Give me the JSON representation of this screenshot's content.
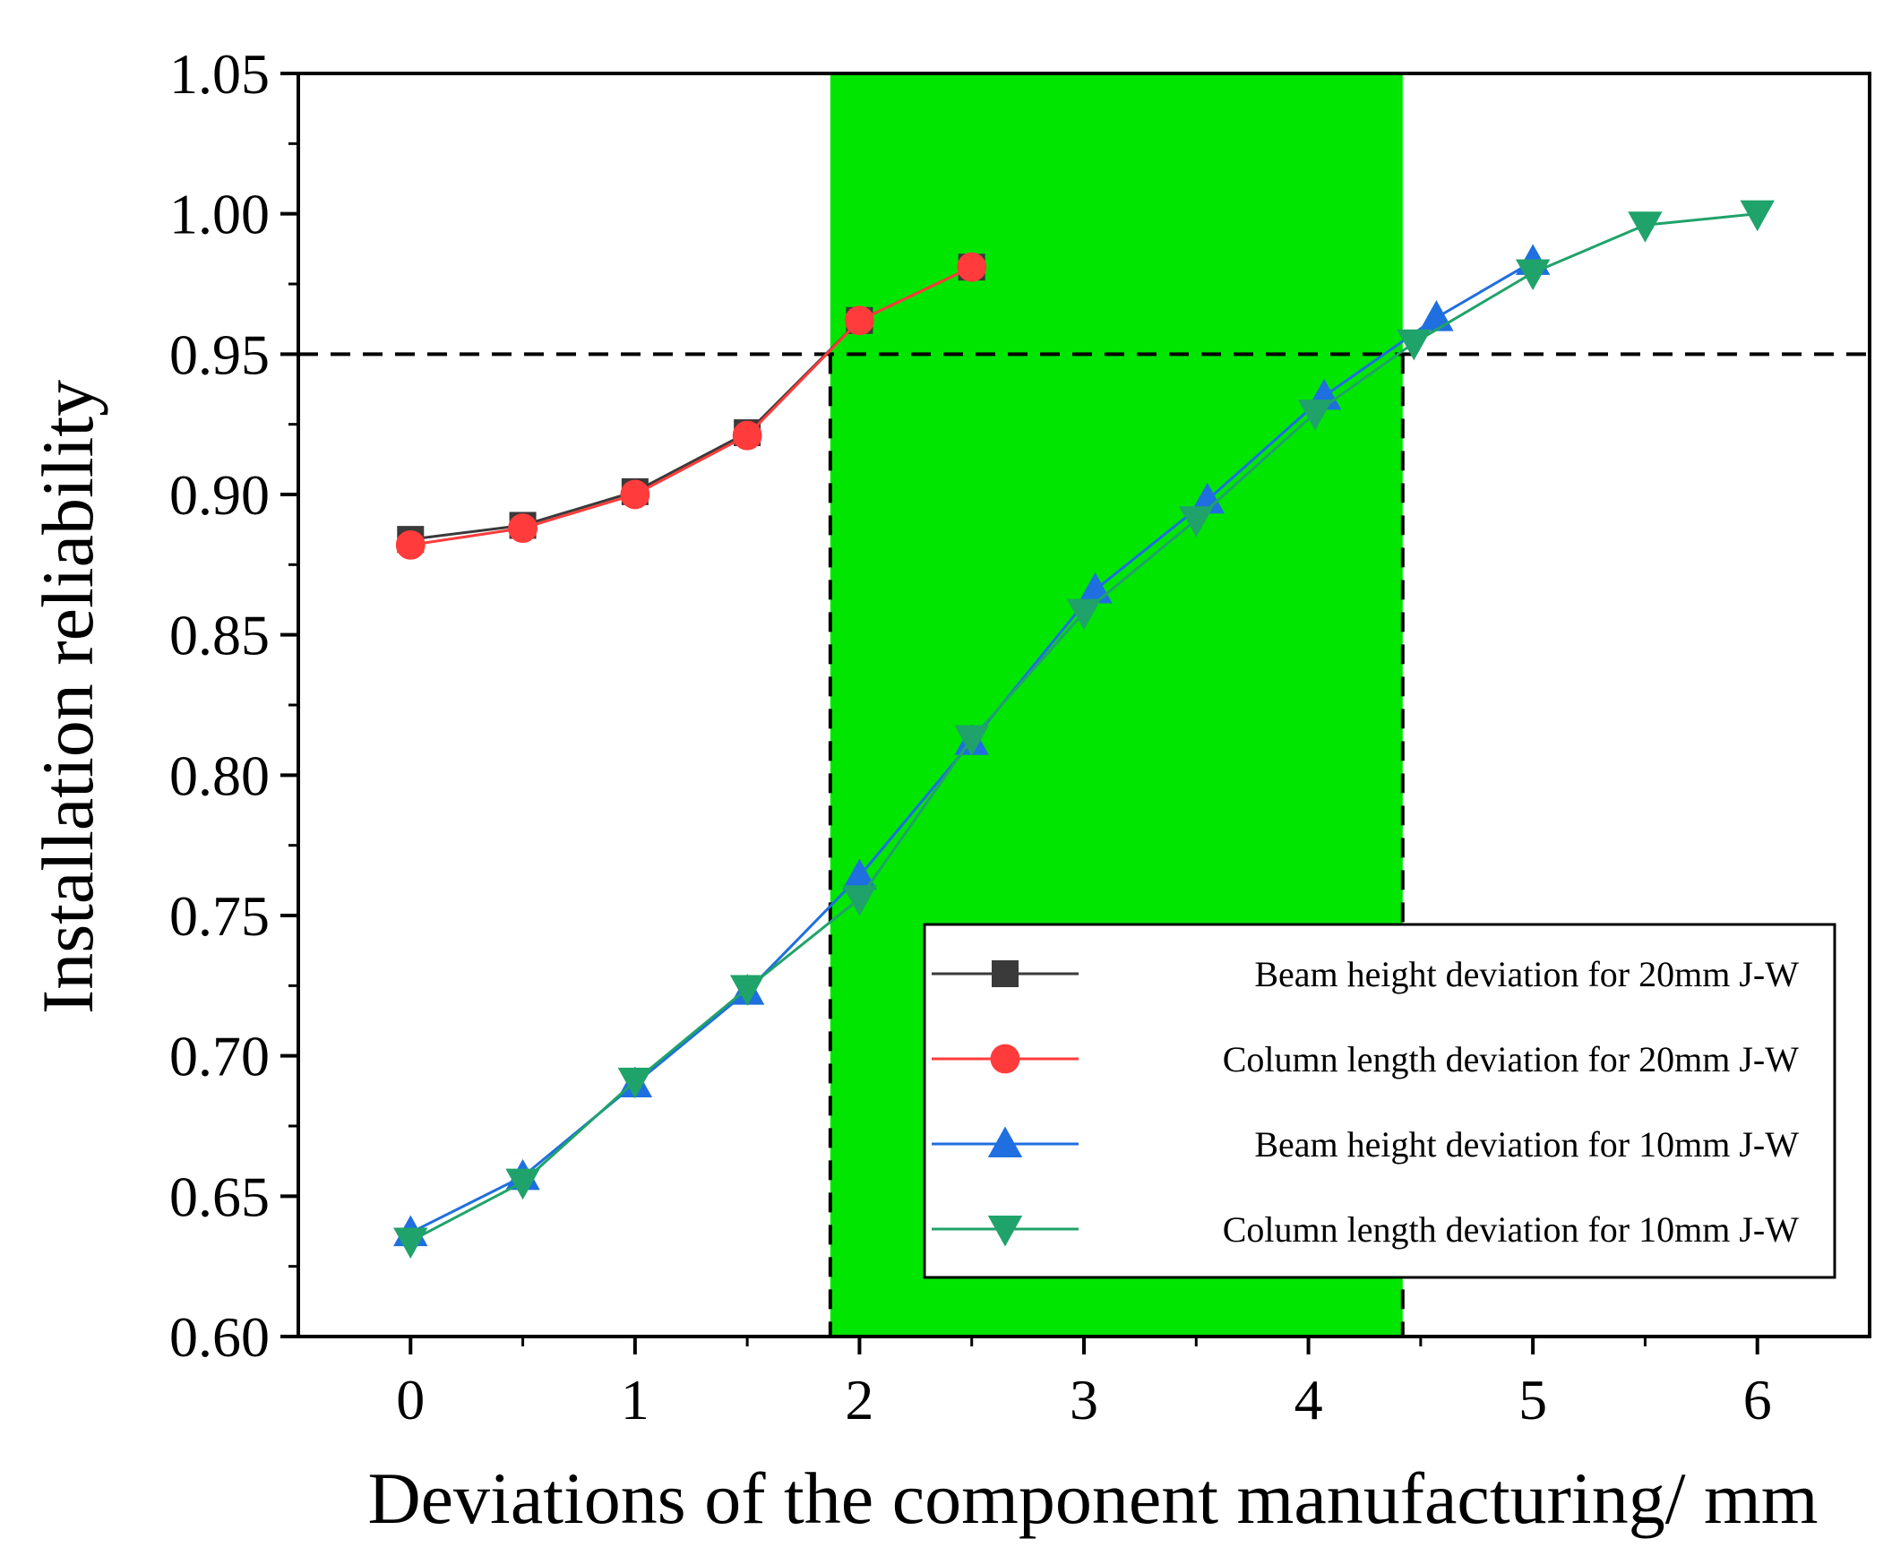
{
  "chart_data": {
    "type": "line",
    "xlabel": "Deviations of the component manufacturing/ mm",
    "ylabel": "Installation reliability",
    "xlim": [
      -0.5,
      6.5
    ],
    "ylim": [
      0.6,
      1.05
    ],
    "xticks": [
      0,
      1,
      2,
      3,
      4,
      5,
      6
    ],
    "yticks": [
      0.6,
      0.65,
      0.7,
      0.75,
      0.8,
      0.85,
      0.9,
      0.95,
      1.0,
      1.05
    ],
    "ytick_labels": [
      "0.60",
      "0.65",
      "0.70",
      "0.75",
      "0.80",
      "0.85",
      "0.90",
      "0.95",
      "1.00",
      "1.05"
    ],
    "highlight_band": {
      "x_from": 1.87,
      "x_to": 4.42,
      "color": "#00e600"
    },
    "threshold": {
      "y": 0.95,
      "style": "dashed",
      "drop_lines_at_x": [
        1.87,
        4.42
      ]
    },
    "legend_position": "lower-right",
    "series": [
      {
        "name": "Beam height deviation for 20mm J-W",
        "marker": "square",
        "color": "#3a3a3a",
        "x": [
          0,
          0.5,
          1.0,
          1.5,
          2.0,
          2.5
        ],
        "y": [
          0.884,
          0.889,
          0.901,
          0.922,
          0.962,
          0.981
        ]
      },
      {
        "name": "Column length deviation for 20mm J-W",
        "marker": "circle",
        "color": "#ff3b3b",
        "x": [
          0,
          0.5,
          1.0,
          1.5,
          2.0,
          2.5
        ],
        "y": [
          0.882,
          0.888,
          0.9,
          0.921,
          0.962,
          0.981
        ]
      },
      {
        "name": "Beam height deviation for 10mm J-W",
        "marker": "triangle-up",
        "color": "#1f6fe0",
        "x": [
          0,
          0.5,
          1.0,
          1.5,
          2.0,
          2.5,
          3.05,
          3.55,
          4.07,
          4.57,
          5.0
        ],
        "y": [
          0.637,
          0.657,
          0.69,
          0.723,
          0.764,
          0.812,
          0.866,
          0.898,
          0.935,
          0.963,
          0.983
        ]
      },
      {
        "name": "Column length deviation for 10mm J-W",
        "marker": "triangle-down",
        "color": "#1fa36a",
        "x": [
          0,
          0.5,
          1.0,
          1.5,
          2.0,
          2.5,
          3.0,
          3.5,
          4.03,
          4.47,
          5.0,
          5.5,
          6.0
        ],
        "y": [
          0.634,
          0.655,
          0.691,
          0.724,
          0.756,
          0.813,
          0.858,
          0.891,
          0.929,
          0.954,
          0.979,
          0.996,
          1.0
        ]
      }
    ]
  }
}
